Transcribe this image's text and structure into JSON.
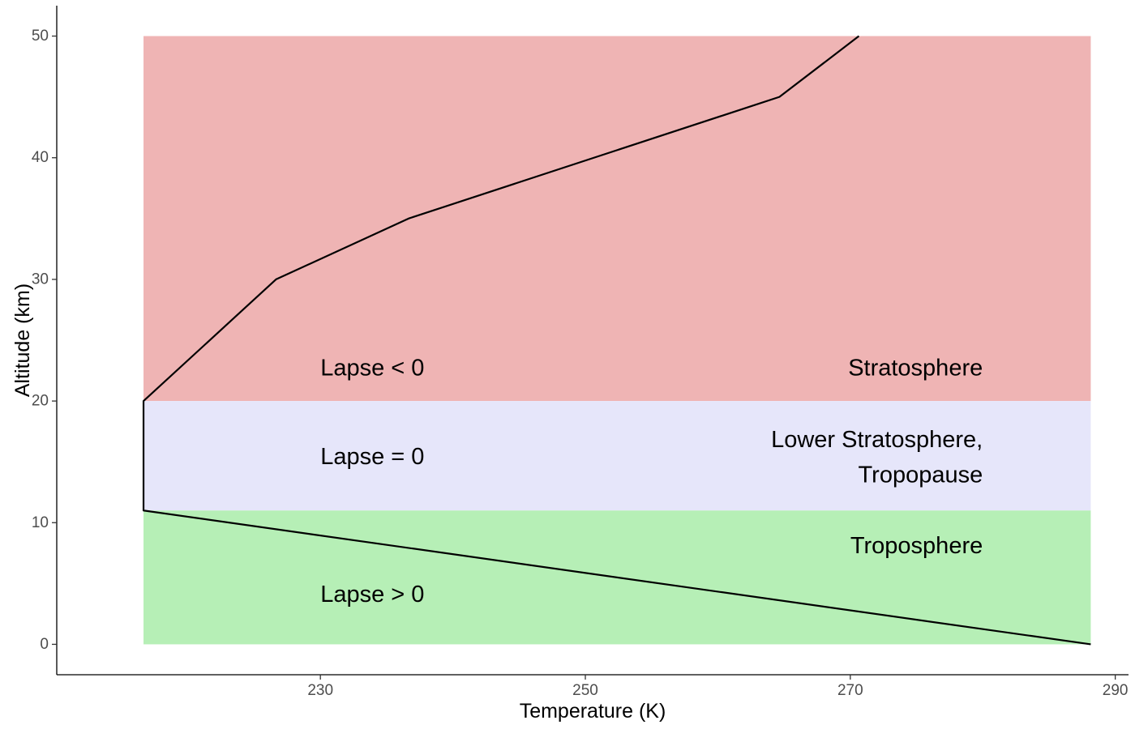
{
  "chart_data": {
    "type": "area",
    "xlabel": "Temperature (K)",
    "ylabel": "Altitude (km)",
    "xlim": [
      210.1,
      291.0
    ],
    "ylim": [
      -2.5,
      52.5
    ],
    "xticks": [
      230,
      250,
      270,
      290
    ],
    "yticks": [
      0,
      10,
      20,
      30,
      40,
      50
    ],
    "grid": false,
    "bands": [
      {
        "ymin": 20,
        "ymax": 50,
        "xmin": 216.65,
        "xmax": 288.15,
        "color": "#efb4b4"
      },
      {
        "ymin": 11,
        "ymax": 20,
        "xmin": 216.65,
        "xmax": 288.15,
        "color": "#e6e6fa"
      },
      {
        "ymin": 0,
        "ymax": 11,
        "xmin": 216.65,
        "xmax": 288.15,
        "color": "#b6efb6"
      }
    ],
    "series": [
      {
        "x": [
          288.15,
          216.65,
          216.65,
          226.65,
          236.65,
          264.65,
          270.65
        ],
        "y": [
          0,
          11,
          20,
          30,
          35,
          45,
          50
        ]
      }
    ],
    "annotations": [
      {
        "text": "Lapse < 0",
        "x": 230,
        "y": 22.7,
        "align": "start"
      },
      {
        "text": "Stratosphere",
        "x": 280,
        "y": 22.7,
        "align": "end"
      },
      {
        "text": "Lapse = 0",
        "x": 230,
        "y": 15.4,
        "align": "start"
      },
      {
        "text": "Lower Stratosphere,",
        "x": 280,
        "y": 16.8,
        "align": "end"
      },
      {
        "text": "Tropopause",
        "x": 280,
        "y": 13.9,
        "align": "end"
      },
      {
        "text": "Troposphere",
        "x": 280,
        "y": 8.1,
        "align": "end"
      },
      {
        "text": "Lapse > 0",
        "x": 230,
        "y": 4.1,
        "align": "start"
      }
    ]
  }
}
